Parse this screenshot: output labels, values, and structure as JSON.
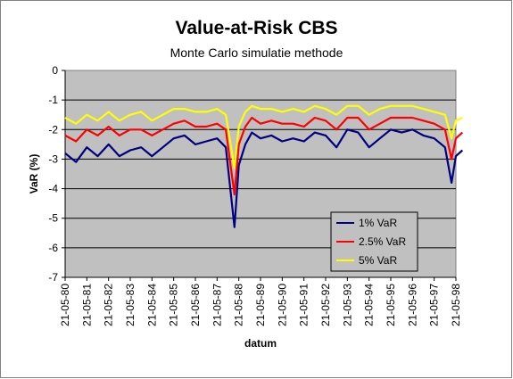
{
  "chart_data": {
    "type": "line",
    "title": "Value-at-Risk CBS",
    "subtitle": "Monte Carlo simulatie methode",
    "xlabel": "datum",
    "ylabel": "VaR (%)",
    "ylim": [
      -7,
      0
    ],
    "yticks": [
      "0",
      "-1",
      "-2",
      "-3",
      "-4",
      "-5",
      "-6",
      "-7"
    ],
    "xticks": [
      "21-05-80",
      "21-05-81",
      "21-05-82",
      "21-05-83",
      "21-05-84",
      "21-05-85",
      "21-05-86",
      "21-05-87",
      "21-05-88",
      "21-05-89",
      "21-05-90",
      "21-05-91",
      "21-05-92",
      "21-05-93",
      "21-05-94",
      "21-05-95",
      "21-05-96",
      "21-05-97",
      "21-05-98"
    ],
    "grid": "horizontal",
    "plot_background": "#c0c0c0",
    "legend_position": "bottom-right",
    "x": [
      1980.0,
      1980.5,
      1981.0,
      1981.5,
      1982.0,
      1982.5,
      1983.0,
      1983.5,
      1984.0,
      1984.5,
      1985.0,
      1985.5,
      1986.0,
      1986.5,
      1987.0,
      1987.4,
      1987.8,
      1988.0,
      1988.3,
      1988.6,
      1989.0,
      1989.5,
      1990.0,
      1990.5,
      1991.0,
      1991.5,
      1992.0,
      1992.5,
      1993.0,
      1993.5,
      1994.0,
      1994.5,
      1995.0,
      1995.5,
      1996.0,
      1996.5,
      1997.0,
      1997.5,
      1997.8,
      1998.0,
      1998.3
    ],
    "series": [
      {
        "name": "1% VaR",
        "color": "#000080",
        "values": [
          -2.8,
          -3.1,
          -2.6,
          -2.9,
          -2.5,
          -2.9,
          -2.7,
          -2.6,
          -2.9,
          -2.6,
          -2.3,
          -2.2,
          -2.5,
          -2.4,
          -2.3,
          -2.6,
          -5.3,
          -3.2,
          -2.5,
          -2.1,
          -2.3,
          -2.2,
          -2.4,
          -2.3,
          -2.4,
          -2.1,
          -2.2,
          -2.6,
          -2.0,
          -2.1,
          -2.6,
          -2.3,
          -2.0,
          -2.1,
          -2.0,
          -2.2,
          -2.3,
          -2.6,
          -3.8,
          -2.9,
          -2.7
        ]
      },
      {
        "name": "2.5% VaR",
        "color": "#ff0000",
        "values": [
          -2.2,
          -2.4,
          -2.0,
          -2.2,
          -1.9,
          -2.2,
          -2.0,
          -2.0,
          -2.2,
          -2.0,
          -1.8,
          -1.7,
          -1.9,
          -1.9,
          -1.8,
          -2.0,
          -4.2,
          -2.5,
          -1.9,
          -1.6,
          -1.8,
          -1.7,
          -1.8,
          -1.8,
          -1.9,
          -1.6,
          -1.7,
          -2.0,
          -1.6,
          -1.6,
          -2.0,
          -1.8,
          -1.6,
          -1.6,
          -1.6,
          -1.7,
          -1.8,
          -2.0,
          -3.0,
          -2.3,
          -2.1
        ]
      },
      {
        "name": "5% VaR",
        "color": "#ffff00",
        "values": [
          -1.6,
          -1.8,
          -1.5,
          -1.7,
          -1.4,
          -1.7,
          -1.5,
          -1.4,
          -1.7,
          -1.5,
          -1.3,
          -1.3,
          -1.4,
          -1.4,
          -1.3,
          -1.5,
          -3.3,
          -1.9,
          -1.4,
          -1.2,
          -1.3,
          -1.3,
          -1.4,
          -1.3,
          -1.4,
          -1.2,
          -1.3,
          -1.5,
          -1.2,
          -1.2,
          -1.5,
          -1.3,
          -1.2,
          -1.2,
          -1.2,
          -1.3,
          -1.4,
          -1.5,
          -2.3,
          -1.7,
          -1.6
        ]
      }
    ]
  }
}
